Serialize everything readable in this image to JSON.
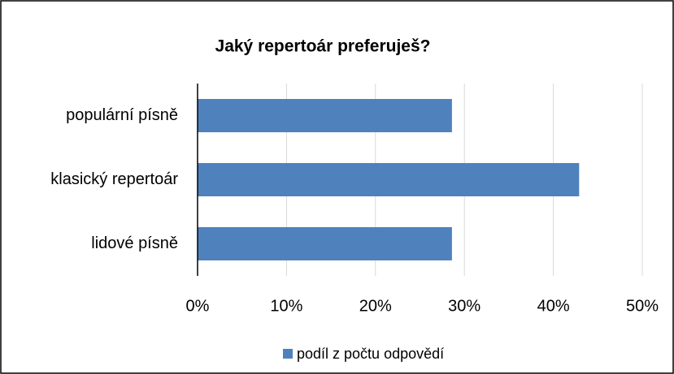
{
  "chart_data": {
    "type": "bar",
    "orientation": "horizontal",
    "title": "Jaký repertoár preferuješ?",
    "categories": [
      "populární písně",
      "klasický repertoár",
      "lidové písně"
    ],
    "series": [
      {
        "name": "podíl z počtu odpovědí",
        "color": "#4f81bd",
        "values": [
          28.6,
          42.9,
          28.6
        ]
      }
    ],
    "xlim": [
      0,
      50
    ],
    "xticks": [
      {
        "value": 0,
        "label": "0%"
      },
      {
        "value": 10,
        "label": "10%"
      },
      {
        "value": 20,
        "label": "20%"
      },
      {
        "value": 30,
        "label": "30%"
      },
      {
        "value": 40,
        "label": "40%"
      },
      {
        "value": 50,
        "label": "50%"
      }
    ],
    "grid": true,
    "legend": "bottom"
  }
}
